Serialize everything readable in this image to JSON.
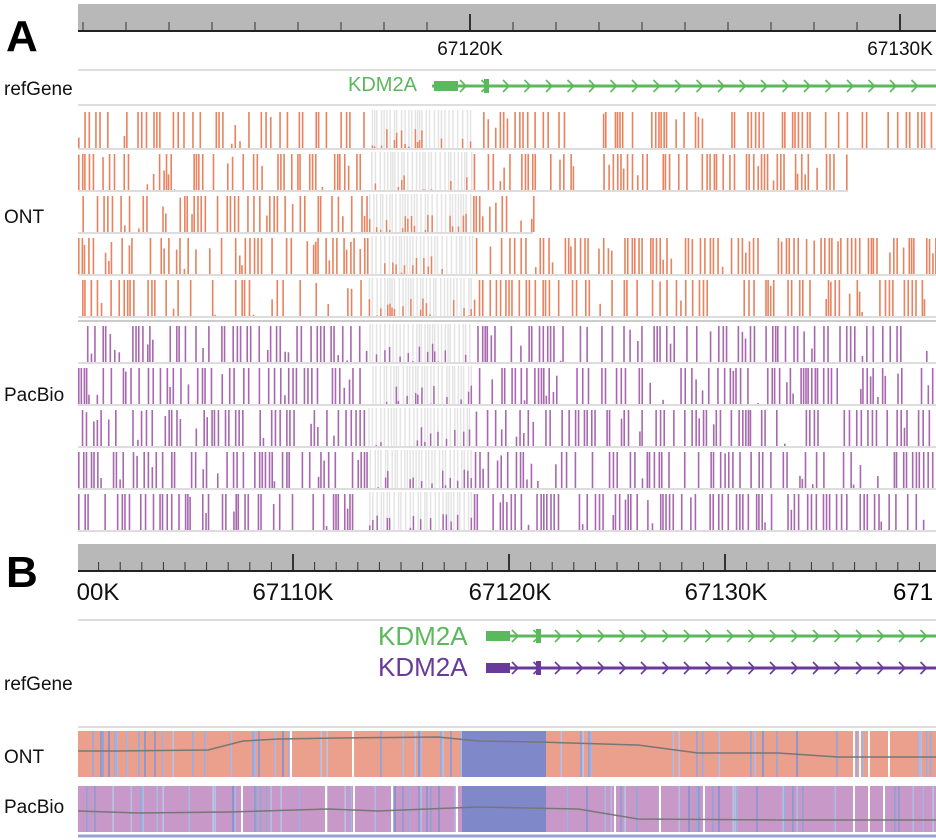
{
  "panel_a": {
    "letter": "A",
    "ruler_ticks": [
      "67120K",
      "67130K"
    ],
    "gene_track_label": "refGene",
    "gene": {
      "name": "KDM2A",
      "color": "#5cb85c"
    },
    "tracks": [
      {
        "label": "ONT",
        "color": "#e8825f",
        "reads": 5
      },
      {
        "label": "PacBio",
        "color": "#a868b0",
        "reads": 5
      }
    ]
  },
  "panel_b": {
    "letter": "B",
    "ruler_ticks": [
      "00K",
      "67110K",
      "67120K",
      "67130K",
      "671"
    ],
    "gene_track_label": "refGene",
    "genes": [
      {
        "name": "KDM2A",
        "color": "#5cb85c"
      },
      {
        "name": "KDM2A",
        "color": "#6a3a9a"
      }
    ],
    "tracks": [
      {
        "label": "ONT",
        "color": "#eaa08c"
      },
      {
        "label": "PacBio",
        "color": "#c898c8"
      }
    ],
    "unmethylated_color": "#7f88c8"
  }
}
